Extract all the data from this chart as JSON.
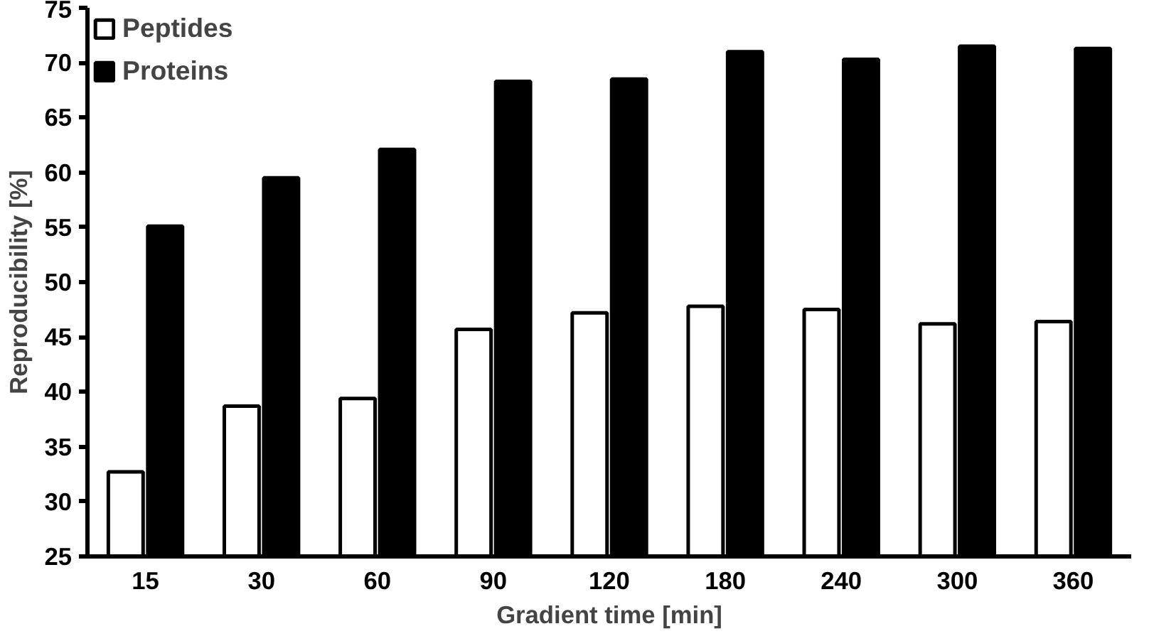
{
  "chart_data": {
    "type": "bar",
    "xlabel": "Gradient time [min]",
    "ylabel": "Reproducibility [%]",
    "categories": [
      "15",
      "30",
      "60",
      "90",
      "120",
      "180",
      "240",
      "300",
      "360"
    ],
    "series": [
      {
        "name": "Peptides",
        "color": "#ffffff",
        "values": [
          32.7,
          38.7,
          39.4,
          45.7,
          47.2,
          47.8,
          47.5,
          46.2,
          46.4
        ]
      },
      {
        "name": "Proteins",
        "color": "#000000",
        "values": [
          55.1,
          59.5,
          62.1,
          68.3,
          68.5,
          71.0,
          70.3,
          71.5,
          71.3
        ]
      }
    ],
    "ylim": [
      25,
      75
    ],
    "yticks": [
      25,
      30,
      35,
      40,
      45,
      50,
      55,
      60,
      65,
      70,
      75
    ],
    "grid": false,
    "legend": "top left"
  }
}
